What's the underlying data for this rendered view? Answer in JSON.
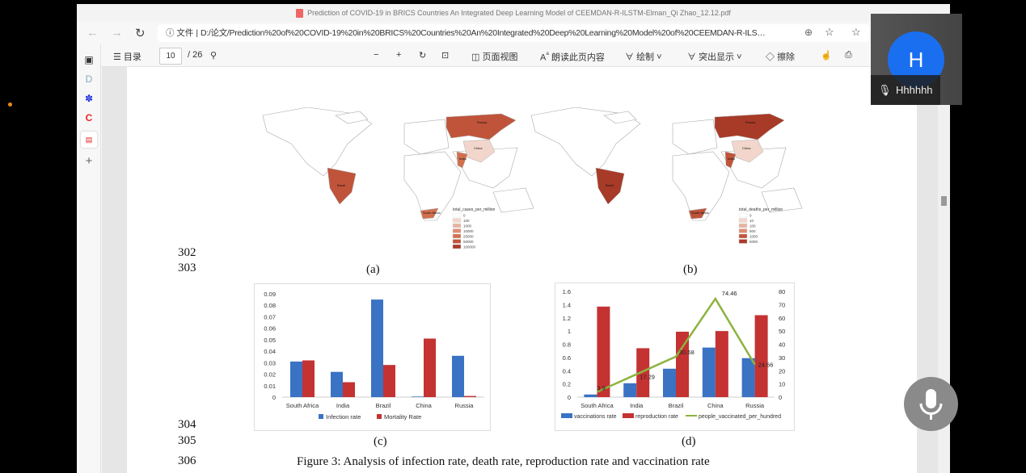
{
  "window": {
    "title": "Prediction of COVID-19 in BRICS Countries An Integrated Deep Learning Model of CEEMDAN-R-ILSTM-Elman_Qi Zhao_12.12.pdf",
    "controls": [
      "minimize",
      "maximize",
      "close"
    ]
  },
  "address_bar": {
    "info_label": "文件",
    "url": "D:/论文/Prediction%20of%20COVID-19%20in%20BRICS%20Countries%20An%20Integrated%20Deep%20Learning%20Model%20of%20CEEMDAN-R-ILSTM-Elman_Qi..."
  },
  "pdf_toolbar": {
    "toc_label": "目录",
    "page_current": "10",
    "page_total": "/ 26",
    "page_view_label": "页面视图",
    "read_aloud_label": "朗读此页内容",
    "draw_label": "绘制",
    "highlight_label": "突出显示",
    "erase_label": "擦除"
  },
  "sidebar": {
    "icons": [
      "tab-actions-icon",
      "d-icon",
      "baidu-paw-icon",
      "red-c-icon",
      "pdf-icon",
      "add-icon"
    ]
  },
  "document": {
    "line_numbers": [
      "302",
      "303",
      "304",
      "305",
      "306"
    ],
    "captions": {
      "a": "(a)",
      "b": "(b)",
      "c": "(c)",
      "d": "(d)"
    },
    "figure_caption": "Figure 3: Analysis of infection rate, death rate, reproduction rate and vaccination rate",
    "maps": [
      {
        "legend_title": "total_cases_per_million",
        "legend_values": [
          "0",
          "100",
          "1000",
          "10000",
          "25000",
          "50000",
          "100000"
        ],
        "labels": [
          "Russia",
          "China",
          "India",
          "Brazil",
          "South Africa"
        ]
      },
      {
        "legend_title": "total_deaths_per_million",
        "legend_values": [
          "0",
          "10",
          "100",
          "500",
          "1000",
          "5000"
        ],
        "labels": [
          "Russia",
          "China",
          "India",
          "Brazil",
          "South Africa"
        ]
      }
    ]
  },
  "chart_data": [
    {
      "type": "bar",
      "categories": [
        "South Africa",
        "India",
        "Brazil",
        "China",
        "Russia"
      ],
      "series": [
        {
          "name": "Infection rate",
          "color": "#3a72c4",
          "values": [
            0.031,
            0.022,
            0.085,
            0.0005,
            0.036
          ]
        },
        {
          "name": "Mortality Rate",
          "color": "#c43232",
          "values": [
            0.032,
            0.013,
            0.028,
            0.051,
            0.001
          ]
        }
      ],
      "ylim": [
        0,
        0.09
      ],
      "yticks": [
        "0",
        "0.01",
        "0.02",
        "0.03",
        "0.04",
        "0.05",
        "0.06",
        "0.07",
        "0.08",
        "0.09"
      ],
      "legend": "bottom",
      "grid": false
    },
    {
      "type": "bar+line",
      "categories": [
        "South Africa",
        "India",
        "Brazil",
        "China",
        "Russia"
      ],
      "series": [
        {
          "name": "vaccinations rate",
          "color": "#3a72c4",
          "axis": "left",
          "values": [
            0.04,
            0.21,
            0.43,
            0.75,
            0.59
          ]
        },
        {
          "name": "reproduction rate",
          "color": "#c43232",
          "axis": "left",
          "values": [
            1.37,
            0.74,
            0.99,
            1.0,
            1.24
          ]
        },
        {
          "name": "people_vaccinated_per_hundred",
          "color": "#8db33e",
          "axis": "right",
          "type": "line",
          "values": [
            3.9,
            17.29,
            30.68,
            74.46,
            24.66
          ],
          "labels": [
            "3.9",
            "17.29",
            "30.68",
            "74.46",
            "24.66"
          ]
        }
      ],
      "ylim": [
        0,
        1.6
      ],
      "yticks": [
        "0",
        "0.2",
        "0.4",
        "0.6",
        "0.8",
        "1",
        "1.2",
        "1.4",
        "1.6"
      ],
      "y2lim": [
        0,
        80
      ],
      "y2ticks": [
        "0",
        "10",
        "20",
        "30",
        "40",
        "50",
        "60",
        "70",
        "80"
      ],
      "legend": "bottom",
      "grid": false
    }
  ],
  "video_overlay": {
    "avatar_letter": "H",
    "name": "Hhhhhh"
  },
  "colors": {
    "accent": "#1a6ff0",
    "map_dark": "#b5432a",
    "map_light": "#f3d5c8"
  }
}
